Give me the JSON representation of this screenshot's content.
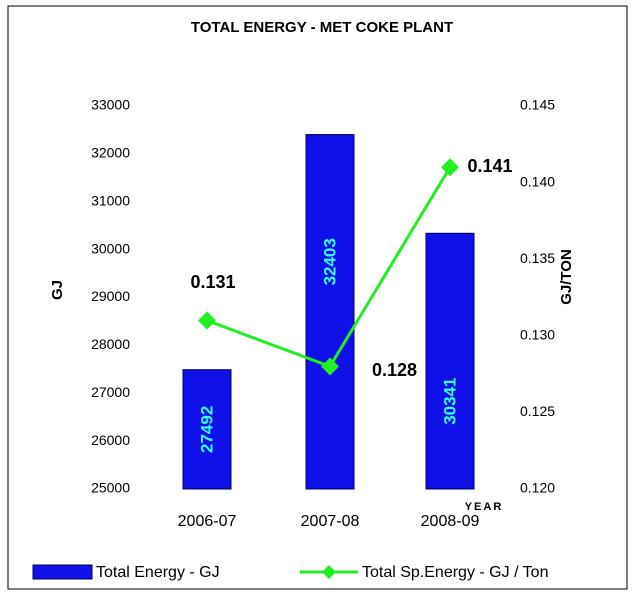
{
  "chart_data": {
    "type": "bar",
    "title": "TOTAL ENERGY - MET COKE PLANT",
    "ylabel": "GJ",
    "y2label": "GJ/TON",
    "xlabel": "YEAR",
    "categories": [
      "2006-07",
      "2007-08",
      "2008-09"
    ],
    "series": [
      {
        "name": "Total Energy - GJ",
        "type": "bar",
        "color": "#1010e8",
        "label_color": "#33ffff",
        "values": [
          27492,
          32403,
          30341
        ]
      },
      {
        "name": "Total Sp.Energy - GJ / Ton",
        "type": "line",
        "axis": "y2",
        "color": "#22ee22",
        "values": [
          0.131,
          0.128,
          0.141
        ]
      }
    ],
    "ylim": [
      25000,
      33000
    ],
    "yticks": [
      25000,
      26000,
      27000,
      28000,
      29000,
      30000,
      31000,
      32000,
      33000
    ],
    "y2lim": [
      0.12,
      0.145
    ],
    "y2ticks": [
      {
        "value": 0.12,
        "label": "0.120"
      },
      0.125,
      {
        "value": 0.13,
        "label": "0.130"
      },
      0.135,
      {
        "value": 0.14,
        "label": "0.140"
      },
      0.145
    ],
    "legend": "bottom"
  }
}
